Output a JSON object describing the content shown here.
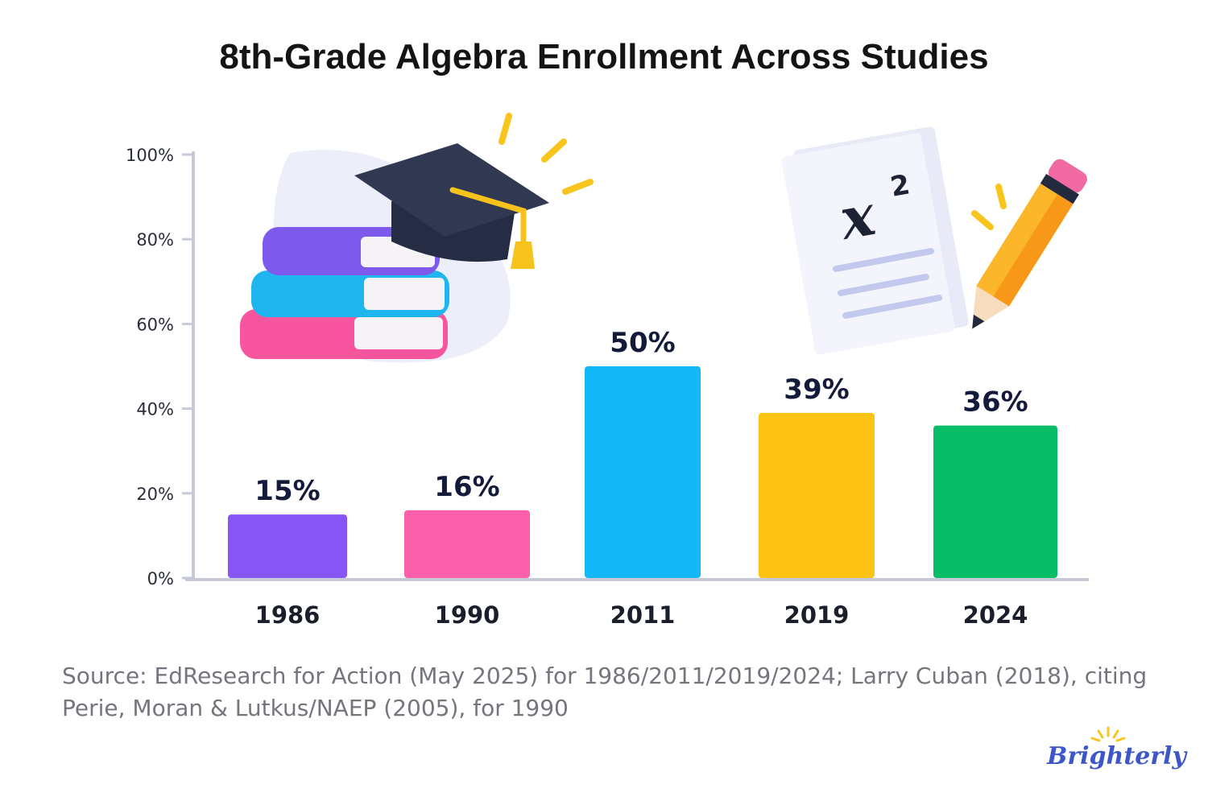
{
  "title": "8th-Grade Algebra Enrollment Across Studies",
  "source_note": "Source: EdResearch for Action (May 2025) for 1986/2011/2019/2024; Larry Cuban (2018), citing Perie, Moran & Lutkus/NAEP (2005), for 1990",
  "brand": "Brighterly",
  "icons": [
    "books-stack-icon",
    "graduation-cap-icon",
    "math-paper-icon",
    "pencil-icon",
    "sun-rays-icon"
  ],
  "chart_data": {
    "type": "bar",
    "title": "8th-Grade Algebra Enrollment Across Studies",
    "xlabel": "",
    "ylabel": "",
    "categories": [
      "1986",
      "1990",
      "2011",
      "2019",
      "2024"
    ],
    "values": [
      15,
      16,
      50,
      39,
      36
    ],
    "data_labels": [
      "15%",
      "16%",
      "50%",
      "39%",
      "36%"
    ],
    "colors": [
      "#8755f5",
      "#fc5fa9",
      "#12b8f8",
      "#fcc314",
      "#08bd67"
    ],
    "ylim": [
      0,
      100
    ],
    "yticks": [
      0,
      20,
      40,
      60,
      80,
      100
    ],
    "ytick_labels": [
      "0%",
      "20%",
      "40%",
      "60%",
      "80%",
      "100%"
    ],
    "grid": false,
    "legend": "none"
  }
}
